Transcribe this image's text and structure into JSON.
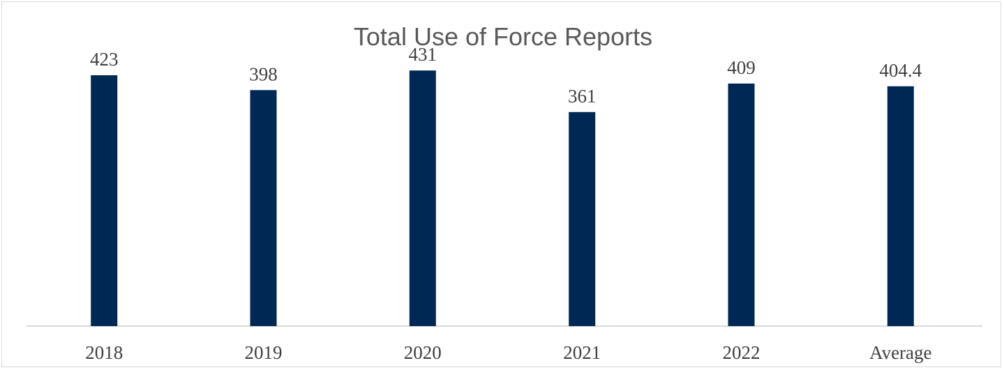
{
  "chart_data": {
    "type": "bar",
    "title": "Total Use of Force Reports",
    "categories": [
      "2018",
      "2019",
      "2020",
      "2021",
      "2022",
      "Average"
    ],
    "values": [
      423,
      398,
      431,
      361,
      409,
      404.4
    ],
    "value_labels": [
      "423",
      "398",
      "431",
      "361",
      "409",
      "404.4"
    ],
    "xlabel": "",
    "ylabel": "",
    "ylim": [
      0,
      470
    ],
    "grid": false,
    "legend": "none",
    "bar_color": "#002855",
    "axis_color": "#d9d9d9"
  }
}
